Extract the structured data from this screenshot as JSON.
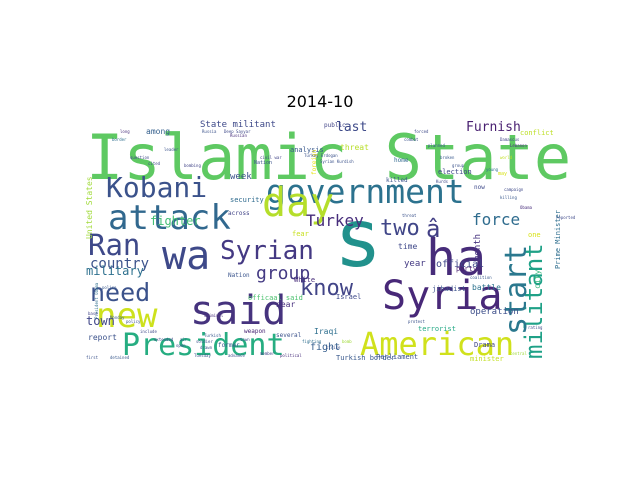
{
  "figure": {
    "title": "2014-10"
  },
  "cloud": {
    "colormap": "viridis",
    "words": [
      {
        "text": "Islamic State",
        "color": "#5ec962"
      },
      {
        "text": "s",
        "color": "#21918c"
      },
      {
        "text": "government",
        "color": "#2c728e"
      },
      {
        "text": "attack",
        "color": "#31688e"
      },
      {
        "text": "Kobani",
        "color": "#3b528b"
      },
      {
        "text": "day",
        "color": "#b5de2b"
      },
      {
        "text": "ha",
        "color": "#472c7a"
      },
      {
        "text": "wa",
        "color": "#3e4989"
      },
      {
        "text": "Syria",
        "color": "#482878"
      },
      {
        "text": "said",
        "color": "#46337e"
      },
      {
        "text": "new",
        "color": "#cde11d"
      },
      {
        "text": "President",
        "color": "#26ad81"
      },
      {
        "text": "American",
        "color": "#d0e11c"
      },
      {
        "text": "Syrian",
        "color": "#443983"
      },
      {
        "text": "know",
        "color": "#414487"
      },
      {
        "text": "need",
        "color": "#3b528b"
      },
      {
        "text": "Ran",
        "color": "#3e4989"
      },
      {
        "text": "militant",
        "color": "#1fa187"
      },
      {
        "text": "start",
        "color": "#2a788e"
      },
      {
        "text": "two",
        "color": "#404688"
      },
      {
        "text": "â",
        "color": "#423f85"
      },
      {
        "text": "group",
        "color": "#443a83"
      },
      {
        "text": "Turkey",
        "color": "#472d7b"
      },
      {
        "text": "force",
        "color": "#2f6c8e"
      },
      {
        "text": "country",
        "color": "#3b528b"
      },
      {
        "text": "fighter",
        "color": "#40bd72"
      },
      {
        "text": "military",
        "color": "#2d708e"
      },
      {
        "text": "town",
        "color": "#404688"
      },
      {
        "text": "Furnish",
        "color": "#481f70"
      },
      {
        "text": "last",
        "color": "#3e4a89"
      },
      {
        "text": "official",
        "color": "#3f4788"
      },
      {
        "text": "report",
        "color": "#3b528b"
      },
      {
        "text": "fight",
        "color": "#355e8d"
      },
      {
        "text": "State militant",
        "color": "#3e4989"
      },
      {
        "text": "week",
        "color": "#3b528b"
      },
      {
        "text": "United States",
        "color": "#a0da39"
      },
      {
        "text": "among",
        "color": "#35608d"
      },
      {
        "text": "security",
        "color": "#2f6b8e"
      },
      {
        "text": "analysis",
        "color": "#38588c"
      },
      {
        "text": "threat",
        "color": "#b8de29"
      },
      {
        "text": "year",
        "color": "#443a83"
      },
      {
        "text": "time",
        "color": "#3f4889"
      },
      {
        "text": "Iraqi",
        "color": "#2e6f8e"
      },
      {
        "text": "near",
        "color": "#472f7d"
      },
      {
        "text": "operation",
        "color": "#3d4e8a"
      },
      {
        "text": "month",
        "color": "#46337f"
      },
      {
        "text": "city",
        "color": "#35b779"
      },
      {
        "text": "battle",
        "color": "#2c728e"
      },
      {
        "text": "Nation",
        "color": "#3a548c"
      },
      {
        "text": "White",
        "color": "#472c7a"
      },
      {
        "text": "Israel",
        "color": "#3e4989"
      },
      {
        "text": "jihadist",
        "color": "#3b528b"
      },
      {
        "text": "terrorist",
        "color": "#22a884"
      },
      {
        "text": "Parliament",
        "color": "#3b528b"
      },
      {
        "text": "Turkish border",
        "color": "#38588c"
      },
      {
        "text": "officaal said",
        "color": "#4ac16d"
      },
      {
        "text": "several",
        "color": "#3b528b"
      },
      {
        "text": "weapon",
        "color": "#482475"
      },
      {
        "text": "party",
        "color": "#481f70"
      },
      {
        "text": "election",
        "color": "#3f4788"
      },
      {
        "text": "killed",
        "color": "#3b528b"
      },
      {
        "text": "home",
        "color": "#31688e"
      },
      {
        "text": "public",
        "color": "#414487"
      },
      {
        "text": "now",
        "color": "#3e4989"
      },
      {
        "text": "across",
        "color": "#414487"
      },
      {
        "text": "former",
        "color": "#38588c"
      },
      {
        "text": "Drama",
        "color": "#404688"
      },
      {
        "text": "minister",
        "color": "#c2df23"
      },
      {
        "text": "conflict",
        "color": "#bddf26"
      },
      {
        "text": "Prime Minister",
        "color": "#2e6e8e"
      },
      {
        "text": "foreign",
        "color": "#e7e419"
      },
      {
        "text": "Nation",
        "color": "#3b528b"
      },
      {
        "text": "one",
        "color": "#d8e219"
      },
      {
        "text": "fear",
        "color": "#c8e020"
      },
      {
        "text": "Russia",
        "color": "#3b528b"
      },
      {
        "text": "Deep Sayyar",
        "color": "#3e4989"
      },
      {
        "text": "President Obama",
        "color": "#2e6e8e"
      },
      {
        "text": "may",
        "color": "#d8e219"
      },
      {
        "text": "protest",
        "color": "#3b528b"
      },
      {
        "text": "rating",
        "color": "#3e4989"
      },
      {
        "text": "coalition",
        "color": "#38588c"
      },
      {
        "text": "world",
        "color": "#c2df23"
      },
      {
        "text": "Tuesday",
        "color": "#3b528b"
      },
      {
        "text": "political",
        "color": "#472d7b"
      },
      {
        "text": "civil war",
        "color": "#414487"
      },
      {
        "text": "campaign",
        "color": "#3e4989"
      },
      {
        "text": "Turkish",
        "color": "#38588c"
      },
      {
        "text": "Syrian Kurdish",
        "color": "#3b528b"
      },
      {
        "text": "fighting",
        "color": "#2e6e8e"
      },
      {
        "text": "bomb",
        "color": "#a0da39"
      },
      {
        "text": "strike",
        "color": "#3b528b"
      },
      {
        "text": "Damascus",
        "color": "#414487"
      },
      {
        "text": "Lebanon",
        "color": "#472d7b"
      },
      {
        "text": "question",
        "color": "#3e4989"
      },
      {
        "text": "police",
        "color": "#38588c"
      },
      {
        "text": "soldier",
        "color": "#3b528b"
      },
      {
        "text": "young",
        "color": "#2e6e8e"
      },
      {
        "text": "forced",
        "color": "#3e4989"
      },
      {
        "text": "Obama",
        "color": "#472d7b"
      },
      {
        "text": "first",
        "color": "#3b528b"
      },
      {
        "text": "detained",
        "color": "#38588c"
      },
      {
        "text": "advance",
        "color": "#3e4989"
      },
      {
        "text": "member",
        "color": "#414487"
      },
      {
        "text": "combat",
        "color": "#3b528b"
      },
      {
        "text": "central",
        "color": "#a0da39"
      },
      {
        "text": "broken",
        "color": "#38588c"
      },
      {
        "text": "Turkey Erdogan",
        "color": "#3b528b"
      },
      {
        "text": "long",
        "color": "#472d7b"
      },
      {
        "text": "include",
        "color": "#3e4989"
      },
      {
        "text": "open",
        "color": "#3b528b"
      },
      {
        "text": "killing",
        "color": "#38588c"
      },
      {
        "text": "bombing",
        "color": "#414487"
      },
      {
        "text": "leader",
        "color": "#3b528b"
      },
      {
        "text": "border",
        "color": "#2e6e8e"
      },
      {
        "text": "cited",
        "color": "#3e4989"
      },
      {
        "text": "criminal",
        "color": "#472d7b"
      },
      {
        "text": "drawn",
        "color": "#3b528b"
      },
      {
        "text": "air",
        "color": "#38588c"
      },
      {
        "text": "extended",
        "color": "#3e4989"
      },
      {
        "text": "town",
        "color": "#3b528b"
      },
      {
        "text": "base",
        "color": "#414487"
      },
      {
        "text": "Monday",
        "color": "#38588c"
      },
      {
        "text": "policy",
        "color": "#3b528b"
      },
      {
        "text": "reported",
        "color": "#3e4989"
      },
      {
        "text": "Russian",
        "color": "#472d7b"
      },
      {
        "text": "threat",
        "color": "#3b528b"
      },
      {
        "text": "planned",
        "color": "#38588c"
      },
      {
        "text": "Kurds",
        "color": "#3e4989"
      },
      {
        "text": "group",
        "color": "#3b528b"
      }
    ]
  }
}
